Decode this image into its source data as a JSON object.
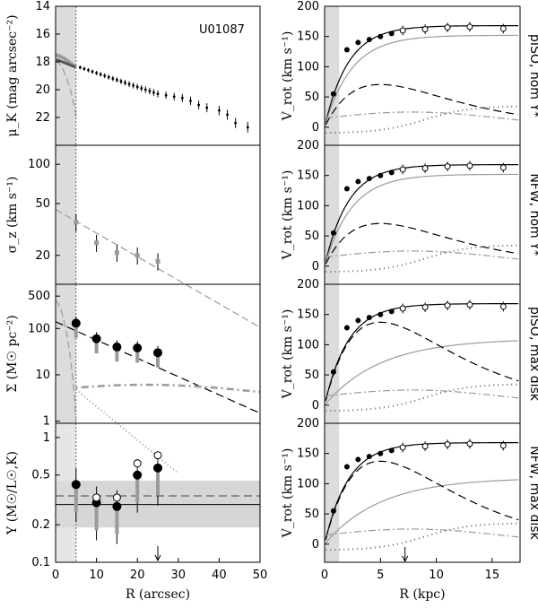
{
  "galaxy": "U01087",
  "colors": {
    "ink": "#000000",
    "gray": "#9a9a9a",
    "shade": "#dcdcdc",
    "band": "#d6d6d6"
  },
  "chart_data": [
    {
      "id": "muK",
      "type": "scatter",
      "ylabel": "μ_K (mag arcsec⁻²)",
      "yticks": [
        "14",
        "16",
        "18",
        "20",
        "22"
      ],
      "xlim": [
        0,
        50
      ],
      "ylim": [
        24,
        14
      ],
      "title": "U01087",
      "points": [
        [
          6,
          18.4
        ],
        [
          7,
          18.5
        ],
        [
          8,
          18.6
        ],
        [
          9,
          18.7
        ],
        [
          10,
          18.8
        ],
        [
          11,
          18.9
        ],
        [
          12,
          19.0
        ],
        [
          13,
          19.1
        ],
        [
          14,
          19.2
        ],
        [
          15,
          19.3
        ],
        [
          16,
          19.4
        ],
        [
          17,
          19.5
        ],
        [
          18,
          19.6
        ],
        [
          19,
          19.7
        ],
        [
          20,
          19.8
        ],
        [
          21,
          19.9
        ],
        [
          22,
          20.0
        ],
        [
          23,
          20.1
        ],
        [
          24,
          20.2
        ],
        [
          25,
          20.3
        ],
        [
          27,
          20.4
        ],
        [
          29,
          20.5
        ],
        [
          31,
          20.6
        ],
        [
          33,
          20.8
        ],
        [
          35,
          21.1
        ],
        [
          37,
          21.3
        ],
        [
          40,
          21.5
        ],
        [
          42,
          21.8
        ],
        [
          44,
          22.4
        ],
        [
          47,
          22.7
        ]
      ]
    },
    {
      "id": "sigma",
      "type": "scatter",
      "ylabel": "σ_z (km s⁻¹)",
      "yticks": [
        "20",
        "50",
        "100"
      ],
      "xlim": [
        0,
        50
      ],
      "points": [
        [
          5,
          36
        ],
        [
          10,
          25
        ],
        [
          15,
          21
        ],
        [
          20,
          20
        ],
        [
          25,
          18
        ]
      ]
    },
    {
      "id": "Sigma",
      "type": "scatter",
      "ylabel": "Σ (M☉ pc⁻²)",
      "yticks": [
        "1",
        "10",
        "100",
        "500"
      ],
      "xlim": [
        0,
        50
      ],
      "points": [
        [
          5,
          130
        ],
        [
          10,
          60
        ],
        [
          15,
          40
        ],
        [
          20,
          38
        ],
        [
          25,
          30
        ]
      ]
    },
    {
      "id": "Upsilon",
      "type": "scatter",
      "ylabel": "Υ (M☉/L☉,K)",
      "yticks": [
        "0.1",
        "0.2",
        "0.5",
        "1"
      ],
      "xlim": [
        0,
        50
      ],
      "xticks": [
        "0",
        "10",
        "20",
        "30",
        "40",
        "50"
      ],
      "xlabel": "R (arcsec)",
      "filled": [
        [
          5,
          0.42
        ],
        [
          10,
          0.3
        ],
        [
          15,
          0.28
        ],
        [
          20,
          0.5
        ],
        [
          25,
          0.57
        ]
      ],
      "open": [
        [
          10,
          0.33
        ],
        [
          15,
          0.33
        ],
        [
          20,
          0.62
        ],
        [
          25,
          0.72
        ]
      ]
    },
    {
      "id": "rc1",
      "type": "line",
      "side_label": "pISO, nom Υ*",
      "ylabel": "V_rot (km s⁻¹)",
      "yticks": [
        "0",
        "50",
        "100",
        "150",
        "200"
      ],
      "xlim": [
        0,
        17.5
      ],
      "ylim": [
        -30,
        200
      ],
      "filled": [
        [
          0.8,
          55
        ],
        [
          2,
          128
        ],
        [
          3,
          140
        ],
        [
          4,
          145
        ],
        [
          5,
          150
        ],
        [
          6,
          155
        ]
      ],
      "open": [
        [
          7,
          160
        ],
        [
          9,
          162
        ],
        [
          11,
          165
        ],
        [
          13,
          166
        ],
        [
          16,
          163
        ]
      ]
    },
    {
      "id": "rc2",
      "type": "line",
      "side_label": "NFW, nom Υ*",
      "ylabel": "V_rot (km s⁻¹)",
      "yticks": [
        "0",
        "50",
        "100",
        "150",
        "200"
      ],
      "xlim": [
        0,
        17.5
      ],
      "ylim": [
        -30,
        200
      ],
      "filled": [
        [
          0.8,
          55
        ],
        [
          2,
          128
        ],
        [
          3,
          140
        ],
        [
          4,
          145
        ],
        [
          5,
          150
        ],
        [
          6,
          155
        ]
      ],
      "open": [
        [
          7,
          160
        ],
        [
          9,
          162
        ],
        [
          11,
          165
        ],
        [
          13,
          166
        ],
        [
          16,
          163
        ]
      ]
    },
    {
      "id": "rc3",
      "type": "line",
      "side_label": "pISO, max disk",
      "ylabel": "V_rot (km s⁻¹)",
      "yticks": [
        "0",
        "50",
        "100",
        "150",
        "200"
      ],
      "xlim": [
        0,
        17.5
      ],
      "ylim": [
        -30,
        200
      ],
      "filled": [
        [
          0.8,
          55
        ],
        [
          2,
          128
        ],
        [
          3,
          140
        ],
        [
          4,
          145
        ],
        [
          5,
          150
        ],
        [
          6,
          155
        ]
      ],
      "open": [
        [
          7,
          160
        ],
        [
          9,
          162
        ],
        [
          11,
          165
        ],
        [
          13,
          166
        ],
        [
          16,
          163
        ]
      ]
    },
    {
      "id": "rc4",
      "type": "line",
      "side_label": "NFW, max disk",
      "ylabel": "V_rot (km s⁻¹)",
      "yticks": [
        "0",
        "50",
        "100",
        "150",
        "200"
      ],
      "xlim": [
        0,
        17.5
      ],
      "ylim": [
        -30,
        200
      ],
      "xticks": [
        "0",
        "5",
        "10",
        "15"
      ],
      "xlabel": "R (kpc)",
      "filled": [
        [
          0.8,
          55
        ],
        [
          2,
          128
        ],
        [
          3,
          140
        ],
        [
          4,
          145
        ],
        [
          5,
          150
        ],
        [
          6,
          155
        ]
      ],
      "open": [
        [
          7,
          160
        ],
        [
          9,
          162
        ],
        [
          11,
          165
        ],
        [
          13,
          166
        ],
        [
          16,
          163
        ]
      ]
    }
  ]
}
